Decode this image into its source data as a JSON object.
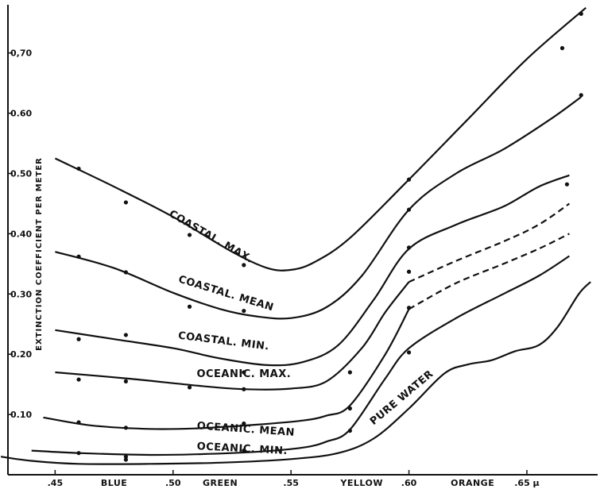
{
  "chart_data": {
    "type": "line",
    "ylabel": "EXTINCTION COEFFICIENT PER METER",
    "xlim": [
      0.43,
      0.68
    ],
    "ylim": [
      0.0,
      0.78
    ],
    "grid": false,
    "y_ticks": [
      {
        "value": 0.1,
        "label": "0.10"
      },
      {
        "value": 0.2,
        "label": "0.20"
      },
      {
        "value": 0.3,
        "label": "0.30"
      },
      {
        "value": 0.4,
        "label": "0.40"
      },
      {
        "value": 0.5,
        "label": "0.50"
      },
      {
        "value": 0.6,
        "label": "0.60"
      },
      {
        "value": 0.7,
        "label": "0,70"
      }
    ],
    "x_ticks": [
      {
        "value": 0.45,
        "label": ".45"
      },
      {
        "value": 0.5,
        "label": ".50"
      },
      {
        "value": 0.55,
        "label": ".55"
      },
      {
        "value": 0.6,
        "label": ".60"
      },
      {
        "value": 0.65,
        "label": ".65 μ"
      }
    ],
    "color_bands": [
      {
        "label": "BLUE",
        "x": 0.475
      },
      {
        "label": "GREEN",
        "x": 0.52
      },
      {
        "label": "YELLOW",
        "x": 0.58
      },
      {
        "label": "ORANGE",
        "x": 0.627
      }
    ],
    "series": [
      {
        "name": "COASTAL. MAX.",
        "label_text": "COASTAL. MAX.",
        "label_pos": [
          0.498,
          0.43
        ],
        "label_angle": 30,
        "curve": [
          [
            0.45,
            0.525
          ],
          [
            0.475,
            0.478
          ],
          [
            0.5,
            0.428
          ],
          [
            0.525,
            0.37
          ],
          [
            0.54,
            0.343
          ],
          [
            0.55,
            0.34
          ],
          [
            0.56,
            0.353
          ],
          [
            0.575,
            0.393
          ],
          [
            0.6,
            0.49
          ],
          [
            0.625,
            0.59
          ],
          [
            0.65,
            0.69
          ],
          [
            0.675,
            0.775
          ]
        ],
        "points": [
          [
            0.46,
            0.508
          ],
          [
            0.48,
            0.452
          ],
          [
            0.507,
            0.398
          ],
          [
            0.53,
            0.348
          ],
          [
            0.6,
            0.49
          ],
          [
            0.665,
            0.708
          ],
          [
            0.673,
            0.765
          ]
        ]
      },
      {
        "name": "COASTAL. MEAN",
        "label_text": "COASTAL. MEAN",
        "label_pos": [
          0.502,
          0.32
        ],
        "label_angle": 17,
        "curve": [
          [
            0.45,
            0.37
          ],
          [
            0.475,
            0.343
          ],
          [
            0.5,
            0.302
          ],
          [
            0.52,
            0.275
          ],
          [
            0.535,
            0.263
          ],
          [
            0.55,
            0.26
          ],
          [
            0.565,
            0.278
          ],
          [
            0.58,
            0.33
          ],
          [
            0.6,
            0.44
          ],
          [
            0.62,
            0.5
          ],
          [
            0.64,
            0.54
          ],
          [
            0.66,
            0.59
          ],
          [
            0.673,
            0.627
          ]
        ],
        "points": [
          [
            0.46,
            0.362
          ],
          [
            0.48,
            0.336
          ],
          [
            0.507,
            0.279
          ],
          [
            0.53,
            0.272
          ],
          [
            0.6,
            0.44
          ],
          [
            0.673,
            0.63
          ]
        ]
      },
      {
        "name": "COASTAL. MIN.",
        "label_text": "COASTAL. MIN.",
        "label_pos": [
          0.502,
          0.226
        ],
        "label_angle": 7,
        "curve": [
          [
            0.45,
            0.24
          ],
          [
            0.475,
            0.225
          ],
          [
            0.5,
            0.21
          ],
          [
            0.52,
            0.193
          ],
          [
            0.54,
            0.182
          ],
          [
            0.555,
            0.187
          ],
          [
            0.57,
            0.215
          ],
          [
            0.585,
            0.29
          ],
          [
            0.6,
            0.375
          ],
          [
            0.62,
            0.415
          ],
          [
            0.64,
            0.445
          ],
          [
            0.655,
            0.478
          ],
          [
            0.668,
            0.497
          ]
        ],
        "points": [
          [
            0.46,
            0.225
          ],
          [
            0.48,
            0.232
          ],
          [
            0.53,
            0.17
          ],
          [
            0.6,
            0.377
          ],
          [
            0.667,
            0.482
          ]
        ]
      },
      {
        "name": "OCEANIC. MAX.",
        "label_text": "OCEANIC. MAX.",
        "label_pos": [
          0.51,
          0.162
        ],
        "label_angle": 0,
        "curve": [
          [
            0.45,
            0.17
          ],
          [
            0.48,
            0.16
          ],
          [
            0.51,
            0.148
          ],
          [
            0.53,
            0.142
          ],
          [
            0.55,
            0.143
          ],
          [
            0.565,
            0.155
          ],
          [
            0.58,
            0.21
          ],
          [
            0.59,
            0.27
          ],
          [
            0.6,
            0.32
          ],
          [
            0.62,
            0.355
          ],
          [
            0.64,
            0.387
          ],
          [
            0.655,
            0.415
          ],
          [
            0.668,
            0.45
          ]
        ],
        "points": [
          [
            0.46,
            0.158
          ],
          [
            0.48,
            0.155
          ],
          [
            0.507,
            0.145
          ],
          [
            0.53,
            0.142
          ],
          [
            0.575,
            0.17
          ],
          [
            0.6,
            0.337
          ]
        ]
      },
      {
        "name": "OCEANIC. MEAN",
        "label_text": "OCEANIC. MEAN",
        "label_pos": [
          0.51,
          0.076
        ],
        "label_angle": 4,
        "curve": [
          [
            0.445,
            0.095
          ],
          [
            0.465,
            0.082
          ],
          [
            0.49,
            0.076
          ],
          [
            0.51,
            0.077
          ],
          [
            0.535,
            0.083
          ],
          [
            0.555,
            0.09
          ],
          [
            0.565,
            0.098
          ],
          [
            0.575,
            0.115
          ],
          [
            0.59,
            0.2
          ],
          [
            0.6,
            0.275
          ],
          [
            0.62,
            0.318
          ],
          [
            0.64,
            0.35
          ],
          [
            0.655,
            0.375
          ],
          [
            0.668,
            0.4
          ]
        ],
        "points": [
          [
            0.46,
            0.087
          ],
          [
            0.48,
            0.078
          ],
          [
            0.53,
            0.085
          ],
          [
            0.575,
            0.11
          ],
          [
            0.6,
            0.277
          ]
        ]
      },
      {
        "name": "OCEANIC. MIN.",
        "label_text": "OCEANIC. MIN.",
        "label_pos": [
          0.51,
          0.042
        ],
        "label_angle": 3,
        "curve": [
          [
            0.44,
            0.04
          ],
          [
            0.46,
            0.036
          ],
          [
            0.49,
            0.033
          ],
          [
            0.51,
            0.034
          ],
          [
            0.535,
            0.038
          ],
          [
            0.555,
            0.045
          ],
          [
            0.565,
            0.055
          ],
          [
            0.575,
            0.075
          ],
          [
            0.59,
            0.16
          ],
          [
            0.6,
            0.21
          ],
          [
            0.62,
            0.26
          ],
          [
            0.64,
            0.3
          ],
          [
            0.655,
            0.33
          ],
          [
            0.668,
            0.363
          ]
        ],
        "points": [
          [
            0.46,
            0.036
          ],
          [
            0.48,
            0.03
          ],
          [
            0.53,
            0.04
          ],
          [
            0.575,
            0.073
          ],
          [
            0.6,
            0.203
          ]
        ]
      },
      {
        "name": "PURE WATER",
        "label_text": "PURE WATER",
        "label_pos": [
          0.585,
          0.082
        ],
        "label_angle": -40,
        "curve": [
          [
            0.427,
            0.03
          ],
          [
            0.44,
            0.023
          ],
          [
            0.46,
            0.018
          ],
          [
            0.49,
            0.018
          ],
          [
            0.52,
            0.02
          ],
          [
            0.55,
            0.026
          ],
          [
            0.57,
            0.036
          ],
          [
            0.585,
            0.06
          ],
          [
            0.6,
            0.11
          ],
          [
            0.615,
            0.168
          ],
          [
            0.625,
            0.183
          ],
          [
            0.635,
            0.19
          ],
          [
            0.645,
            0.205
          ],
          [
            0.655,
            0.215
          ],
          [
            0.663,
            0.245
          ],
          [
            0.672,
            0.3
          ],
          [
            0.677,
            0.32
          ]
        ],
        "points": [
          [
            0.48,
            0.025
          ]
        ]
      }
    ],
    "dashed_segments": [
      {
        "series": "COASTAL. MIN.",
        "from": 0.6,
        "to": 0.668,
        "dashed": false
      },
      {
        "series": "OCEANIC. MAX.",
        "from": 0.6,
        "to": 0.668,
        "dashed": true
      },
      {
        "series": "OCEANIC. MEAN",
        "from": 0.6,
        "to": 0.668,
        "dashed": true
      },
      {
        "series": "OCEANIC. MIN.",
        "from": 0.6,
        "to": 0.668,
        "dashed": false
      }
    ]
  }
}
